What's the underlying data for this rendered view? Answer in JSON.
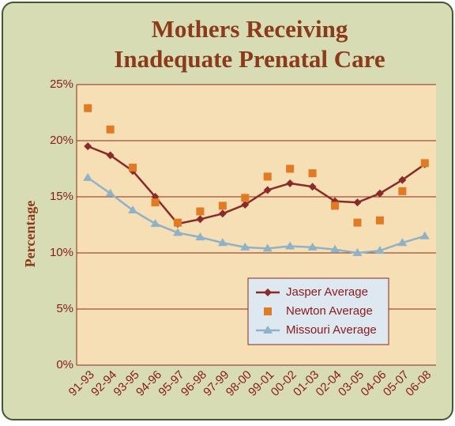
{
  "chart_data": {
    "type": "line",
    "title": [
      "Mothers Receiving",
      "Inadequate Prenatal Care"
    ],
    "y_label": "Percentage",
    "categories": [
      "91-93",
      "92-94",
      "93-95",
      "94-96",
      "95-97",
      "96-98",
      "97-99",
      "98-00",
      "99-01",
      "00-02",
      "01-03",
      "02-04",
      "03-05",
      "04-06",
      "05-07",
      "06-08"
    ],
    "series": [
      {
        "name": "Jasper Average",
        "color": "#8b2a2a",
        "marker": "diamond",
        "line": true,
        "values": [
          19.5,
          18.7,
          17.3,
          15.0,
          12.6,
          13.0,
          13.5,
          14.3,
          15.6,
          16.2,
          15.9,
          14.6,
          14.5,
          15.3,
          16.5,
          17.9
        ]
      },
      {
        "name": "Newton Average",
        "color": "#e07b24",
        "marker": "square",
        "line": false,
        "values": [
          22.9,
          21.0,
          17.6,
          14.5,
          12.7,
          13.7,
          14.2,
          14.9,
          16.8,
          17.5,
          17.1,
          14.2,
          12.7,
          12.9,
          15.5,
          18.0
        ]
      },
      {
        "name": "Missouri Average",
        "color": "#8fb2c8",
        "marker": "triangle",
        "line": true,
        "values": [
          16.7,
          15.3,
          13.8,
          12.6,
          11.8,
          11.4,
          10.9,
          10.5,
          10.4,
          10.6,
          10.5,
          10.3,
          10.0,
          10.2,
          10.9,
          11.5
        ]
      }
    ],
    "ylim": [
      0,
      25
    ],
    "yticks": [
      {
        "value": 0,
        "label": "0%"
      },
      {
        "value": 5,
        "label": "5%"
      },
      {
        "value": 10,
        "label": "10%"
      },
      {
        "value": 15,
        "label": "15%"
      },
      {
        "value": 20,
        "label": "20%"
      },
      {
        "value": 25,
        "label": "25%"
      }
    ],
    "grid": true,
    "legend": "lower right"
  }
}
